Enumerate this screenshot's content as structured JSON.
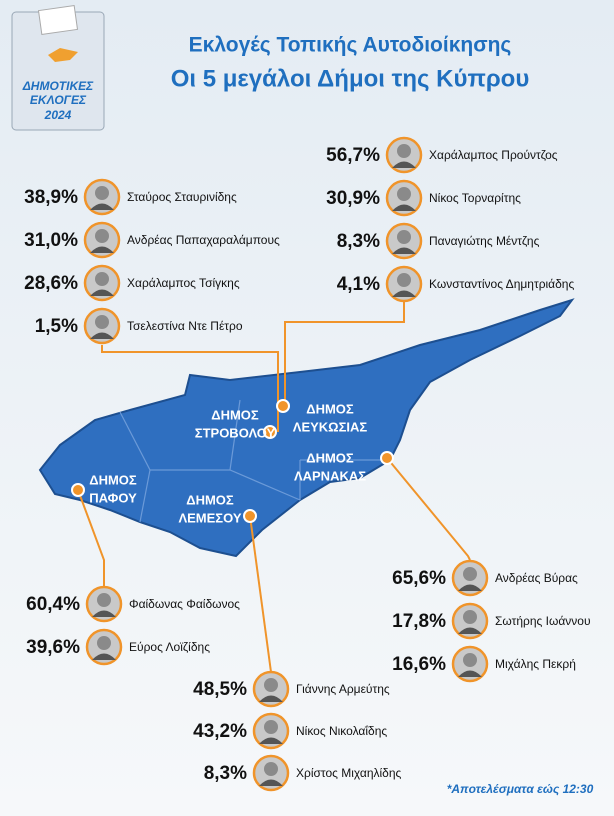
{
  "header": {
    "title": "Εκλογές Τοπικής Αυτοδιοίκησης",
    "subtitle": "Οι 5 μεγάλοι Δήμοι της Κύπρου"
  },
  "logo": {
    "line1": "ΔΗΜΟΤΙΚΕΣ",
    "line2": "ΕΚΛΟΓΕΣ",
    "year": "2024"
  },
  "regions": [
    {
      "label": [
        "ΔΗΜΟΣ",
        "ΣΤΡΟΒΟΛΟΥ"
      ],
      "candidates": [
        {
          "pct": "38,9%",
          "name": "Σταύρος Σταυρινίδης"
        },
        {
          "pct": "31,0%",
          "name": "Ανδρέας Παπαχαραλάμπους"
        },
        {
          "pct": "28,6%",
          "name": "Χαράλαμπος Τσίγκης"
        },
        {
          "pct": "1,5%",
          "name": "Τσελεστίνα Ντε Πέτρο"
        }
      ]
    },
    {
      "label": [
        "ΔΗΜΟΣ",
        "ΛΕΥΚΩΣΙΑΣ"
      ],
      "candidates": [
        {
          "pct": "56,7%",
          "name": "Χαράλαμπος Προύντζος"
        },
        {
          "pct": "30,9%",
          "name": "Νίκος Τορναρίτης"
        },
        {
          "pct": "8,3%",
          "name": "Παναγιώτης Μέντζης"
        },
        {
          "pct": "4,1%",
          "name": "Κωνσταντίνος Δημητριάδης"
        }
      ]
    },
    {
      "label": [
        "ΔΗΜΟΣ",
        "ΛΑΡΝΑΚΑΣ"
      ],
      "candidates": [
        {
          "pct": "65,6%",
          "name": "Ανδρέας Βύρας"
        },
        {
          "pct": "17,8%",
          "name": "Σωτήρης Ιωάννου"
        },
        {
          "pct": "16,6%",
          "name": "Μιχάλης Πεκρή"
        }
      ]
    },
    {
      "label": [
        "ΔΗΜΟΣ",
        "ΠΑΦΟΥ"
      ],
      "candidates": [
        {
          "pct": "60,4%",
          "name": "Φαίδωνας Φαίδωνος"
        },
        {
          "pct": "39,6%",
          "name": "Εύρος Λοϊζίδης"
        }
      ]
    },
    {
      "label": [
        "ΔΗΜΟΣ",
        "ΛΕΜΕΣΟΥ"
      ],
      "candidates": [
        {
          "pct": "48,5%",
          "name": "Γιάννης Αρμεύτης"
        },
        {
          "pct": "43,2%",
          "name": "Νίκος Νικολαΐδης"
        },
        {
          "pct": "8,3%",
          "name": "Χρίστος Μιχαηλίδης"
        }
      ]
    }
  ],
  "footnote": "*Αποτελέσματα εώς 12:30"
}
